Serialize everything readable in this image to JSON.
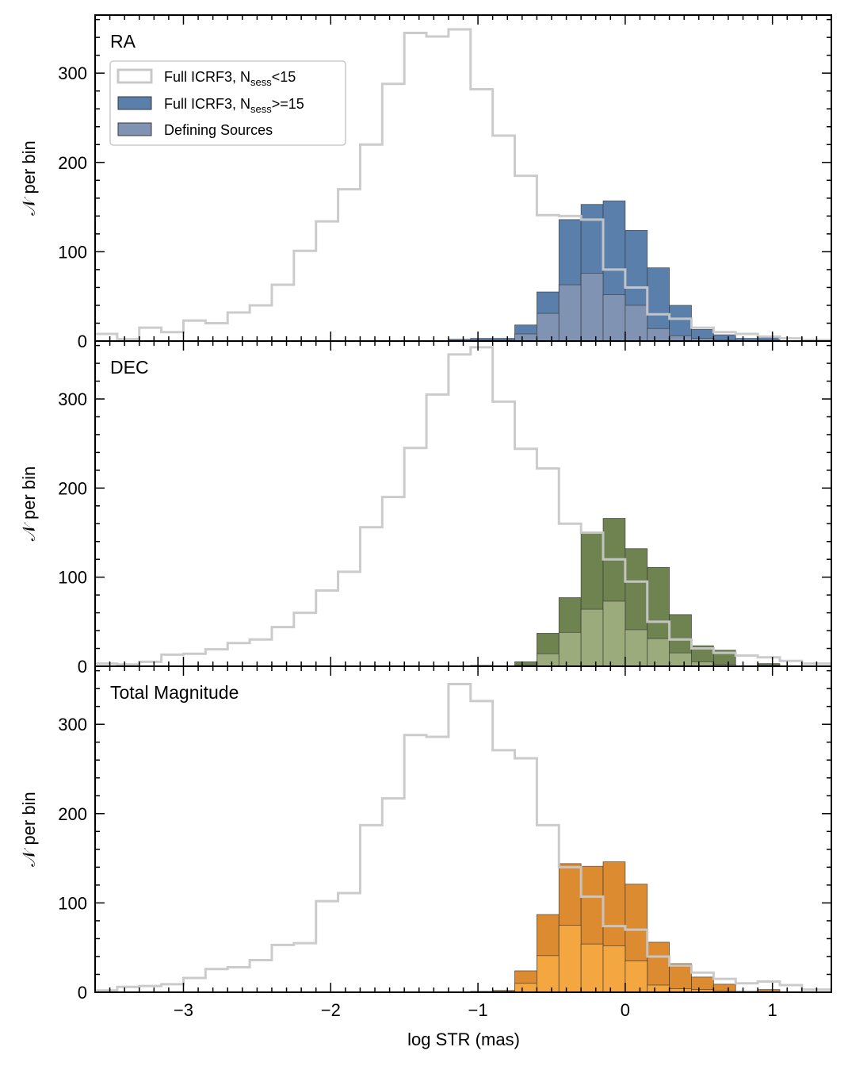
{
  "chart_data": {
    "type": "bar",
    "kind": "stacked-histogram-panels",
    "xlabel": "log STR (mas)",
    "xlim": [
      -3.6,
      1.4
    ],
    "ylabel": "𝒩 per bin",
    "ylim": [
      0,
      365
    ],
    "bin_width": 0.15,
    "xticks": [
      -3,
      -2,
      -1,
      0,
      1
    ],
    "xtick_labels": [
      "−3",
      "−2",
      "−1",
      "0",
      "1"
    ],
    "yticks": [
      0,
      100,
      200,
      300
    ],
    "yticks_labels": [
      "0",
      "100",
      "200",
      "300"
    ],
    "legend": {
      "location": "upper-left",
      "entries": [
        {
          "label_main": "Full ICRF3, N",
          "label_sub": "sess",
          "label_tail": "<15",
          "style": "step"
        },
        {
          "label_main": "Full ICRF3, N",
          "label_sub": "sess",
          "label_tail": ">=15",
          "style": "bar"
        },
        {
          "label_main": "Defining Sources",
          "label_sub": "",
          "label_tail": "",
          "style": "bar-light"
        }
      ]
    },
    "panels": [
      {
        "label": "RA",
        "colors": {
          "full": "#5a7fab",
          "defining": "#8093b3"
        },
        "less15_edges": [
          -3.6,
          -3.45,
          -3.3,
          -3.15,
          -3.0,
          -2.85,
          -2.7,
          -2.55,
          -2.4,
          -2.25,
          -2.1,
          -1.95,
          -1.8,
          -1.65,
          -1.5,
          -1.35,
          -1.2,
          -1.05,
          -0.9,
          -0.75,
          -0.6,
          -0.45,
          -0.3,
          -0.15,
          0.0,
          0.15,
          0.3,
          0.45,
          0.6,
          0.75,
          0.9,
          1.05,
          1.2,
          1.4
        ],
        "less15_values": [
          8,
          2,
          15,
          10,
          23,
          20,
          32,
          40,
          63,
          101,
          134,
          170,
          220,
          288,
          345,
          341,
          349,
          282,
          230,
          185,
          141,
          140,
          136,
          80,
          60,
          30,
          25,
          15,
          10,
          8,
          5,
          3,
          1
        ],
        "full_edges": [
          -1.2,
          -1.05,
          -0.9,
          -0.75,
          -0.6,
          -0.45,
          -0.3,
          -0.15,
          0.0,
          0.15,
          0.3,
          0.45,
          0.6,
          0.75,
          0.9,
          1.05
        ],
        "full_values": [
          2,
          3,
          3,
          18,
          55,
          136,
          153,
          157,
          124,
          82,
          40,
          13,
          7,
          3,
          4
        ],
        "defining_values": [
          0,
          1,
          1,
          8,
          31,
          63,
          76,
          52,
          40,
          14,
          6,
          3,
          1,
          0,
          1
        ]
      },
      {
        "label": "DEC",
        "colors": {
          "full": "#6e8350",
          "defining": "#9cab7c"
        },
        "less15_edges": [
          -3.6,
          -3.45,
          -3.3,
          -3.15,
          -3.0,
          -2.85,
          -2.7,
          -2.55,
          -2.4,
          -2.25,
          -2.1,
          -1.95,
          -1.8,
          -1.65,
          -1.5,
          -1.35,
          -1.2,
          -1.05,
          -0.9,
          -0.75,
          -0.6,
          -0.45,
          -0.3,
          -0.15,
          0.0,
          0.15,
          0.3,
          0.45,
          0.6,
          0.75,
          0.9,
          1.05,
          1.2,
          1.4
        ],
        "less15_values": [
          3,
          2,
          5,
          13,
          14,
          19,
          26,
          30,
          44,
          60,
          85,
          106,
          156,
          190,
          245,
          305,
          350,
          358,
          297,
          244,
          222,
          160,
          150,
          120,
          95,
          50,
          30,
          20,
          15,
          12,
          10,
          6,
          3
        ],
        "full_edges": [
          -1.2,
          -1.05,
          -0.9,
          -0.75,
          -0.6,
          -0.45,
          -0.3,
          -0.15,
          0.0,
          0.15,
          0.3,
          0.45,
          0.6,
          0.75,
          0.9,
          1.05
        ],
        "full_values": [
          0,
          1,
          0,
          5,
          37,
          77,
          150,
          166,
          132,
          111,
          58,
          23,
          18,
          0,
          3
        ],
        "defining_values": [
          0,
          0,
          0,
          1,
          14,
          38,
          64,
          73,
          41,
          31,
          15,
          5,
          2,
          0,
          1
        ]
      },
      {
        "label": "Total Magnitude",
        "colors": {
          "full": "#dc8b30",
          "defining": "#f4a641"
        },
        "less15_edges": [
          -3.6,
          -3.45,
          -3.3,
          -3.15,
          -3.0,
          -2.85,
          -2.7,
          -2.55,
          -2.4,
          -2.25,
          -2.1,
          -1.95,
          -1.8,
          -1.65,
          -1.5,
          -1.35,
          -1.2,
          -1.05,
          -0.9,
          -0.75,
          -0.6,
          -0.45,
          -0.3,
          -0.15,
          0.0,
          0.15,
          0.3,
          0.45,
          0.6,
          0.75,
          0.9,
          1.05,
          1.2,
          1.4
        ],
        "less15_values": [
          2,
          6,
          7,
          9,
          16,
          26,
          28,
          36,
          53,
          55,
          102,
          111,
          187,
          217,
          288,
          286,
          345,
          326,
          271,
          262,
          187,
          140,
          107,
          74,
          70,
          40,
          30,
          22,
          15,
          10,
          12,
          8,
          3
        ],
        "full_edges": [
          -1.2,
          -1.05,
          -0.9,
          -0.75,
          -0.6,
          -0.45,
          -0.3,
          -0.15,
          0.0,
          0.15,
          0.3,
          0.45,
          0.6,
          0.75,
          0.9,
          1.05
        ],
        "full_values": [
          0,
          1,
          2,
          24,
          87,
          144,
          141,
          146,
          121,
          56,
          32,
          17,
          9,
          1,
          3
        ],
        "defining_values": [
          0,
          0,
          1,
          10,
          41,
          75,
          54,
          52,
          35,
          8,
          4,
          3,
          1,
          0,
          1
        ]
      }
    ]
  }
}
